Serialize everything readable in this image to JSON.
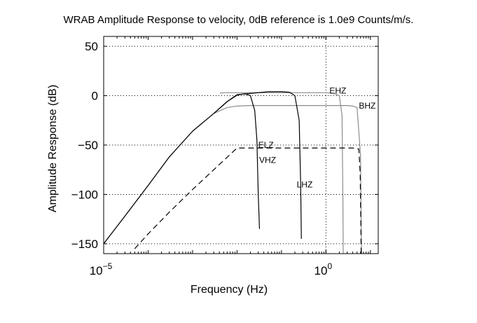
{
  "title": "WRAB Amplitude Response to velocity, 0dB reference is 1.0e9 Counts/m/s.",
  "chart_data": {
    "type": "line",
    "xlabel": "Frequency (Hz)",
    "ylabel": "Amplitude Response (dB)",
    "xscale": "log",
    "xlim": [
      1e-05,
      15
    ],
    "ylim": [
      -160,
      60
    ],
    "grid": true,
    "xticks": [
      {
        "value": 1e-05,
        "base": "10",
        "exp": "−5"
      },
      {
        "value": 1,
        "base": "10",
        "exp": "0"
      }
    ],
    "yticks": [
      {
        "value": 50,
        "label": "50"
      },
      {
        "value": 0,
        "label": "0"
      },
      {
        "value": -50,
        "label": "−50"
      },
      {
        "value": -100,
        "label": "−100"
      },
      {
        "value": -150,
        "label": "−150"
      }
    ],
    "series": [
      {
        "name": "BHZ",
        "color": "#8c8c8c",
        "dash": "",
        "x": [
          1e-05,
          3e-05,
          0.0001,
          0.0003,
          0.001,
          0.003,
          0.006,
          0.01,
          0.02,
          0.05,
          0.1,
          0.2,
          0.5,
          1,
          2,
          3,
          4,
          5,
          6,
          6.3
        ],
        "y": [
          -150,
          -122,
          -91,
          -62,
          -36,
          -18,
          -12,
          -10.5,
          -10,
          -10,
          -10,
          -10,
          -10,
          -10,
          -10,
          -10,
          -10.5,
          -12,
          -60,
          -160
        ],
        "label_at": [
          5.5,
          -13
        ]
      },
      {
        "name": "EHZ",
        "color": "#8c8c8c",
        "dash": "",
        "x": [
          0.0041,
          0.005,
          0.01,
          0.1,
          1,
          1.5,
          2,
          2.3,
          2.4,
          2.45
        ],
        "y": [
          2.5,
          3,
          3,
          3,
          3,
          2.5,
          0,
          -20,
          -100,
          -160
        ],
        "label_at": [
          1.2,
          2
        ]
      },
      {
        "name": "ELZ",
        "color": "#000000",
        "dash": "",
        "x": [
          0.003,
          0.003,
          0.006,
          0.01,
          0.05,
          0.1,
          0.15,
          0.2,
          0.25,
          0.27,
          0.28
        ],
        "y": [
          -18,
          -18,
          -6,
          1,
          4,
          4,
          3.5,
          0,
          -25,
          -90,
          -145
        ],
        "label_at": [
          0.03,
          -53
        ]
      },
      {
        "name": "VHZ",
        "color": "#000000",
        "dash": "",
        "x": [
          1e-05,
          3e-05,
          0.0001,
          0.0003,
          0.001,
          0.003,
          0.006,
          0.01,
          0.015,
          0.02,
          0.025,
          0.028,
          0.03,
          0.032
        ],
        "y": [
          -150,
          -122,
          -91,
          -62,
          -36,
          -18,
          -6,
          0.5,
          2,
          0,
          -15,
          -45,
          -100,
          -135
        ],
        "label_at": [
          0.0315,
          -68
        ]
      },
      {
        "name": "LHZ",
        "color": "#000000",
        "dash": "8,5",
        "x": [
          5e-05,
          0.0001,
          0.0003,
          0.001,
          0.003,
          0.01,
          0.1,
          1,
          4,
          5.5,
          5.9,
          6.2
        ],
        "y": [
          -155,
          -140,
          -118,
          -95,
          -75,
          -53,
          -53,
          -53,
          -53,
          -54,
          -80,
          -160
        ],
        "label_at": [
          0.22,
          -93
        ]
      }
    ]
  }
}
